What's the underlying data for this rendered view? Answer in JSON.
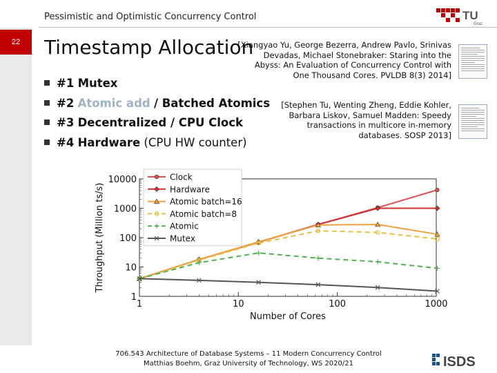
{
  "header": {
    "course_title": "Pessimistic and Optimistic Concurrency Control",
    "page_number": "22"
  },
  "logo": {
    "text": "TU",
    "subtext": "Graz",
    "color": "#c00000"
  },
  "slide": {
    "title": "Timestamp Allocation",
    "bullets": [
      {
        "number": "#1",
        "bold": "Mutex",
        "rest": ""
      },
      {
        "number": "#2",
        "highlight": "Atomic add",
        "bold": "/ Batched Atomics",
        "rest": ""
      },
      {
        "number": "#3",
        "bold": "Decentralized / CPU Clock",
        "rest": ""
      },
      {
        "number": "#4",
        "bold": "Hardware",
        "rest": "(CPU HW counter)"
      }
    ],
    "references": [
      "[Xiangyao Yu, George Bezerra, Andrew Pavlo, Srinivas Devadas, Michael Stonebraker: Staring into the Abyss: An Evaluation of Concurrency Control with One Thousand Cores. PVLDB 8(3) 2014]",
      "[Stephen Tu, Wenting Zheng, Eddie Kohler, Barbara Liskov, Samuel Madden: Speedy transactions in multicore in-memory databases. SOSP 2013]"
    ]
  },
  "chart_data": {
    "type": "line",
    "xlabel": "Number of Cores",
    "ylabel": "Throughput (Million ts/s)",
    "xscale": "log",
    "yscale": "log",
    "xlim": [
      1,
      1000
    ],
    "ylim": [
      1,
      10000
    ],
    "xticks": [
      "1",
      "10",
      "100",
      "1000"
    ],
    "yticks": [
      "1",
      "10",
      "100",
      "1000",
      "10000"
    ],
    "legend_position": "top-left",
    "series": [
      {
        "name": "Clock",
        "color": "#e05050",
        "marker": "circle",
        "dash": "solid",
        "x": [
          1,
          4,
          16,
          64,
          256,
          1024
        ],
        "y": [
          4,
          18,
          70,
          280,
          1050,
          4200
        ]
      },
      {
        "name": "Hardware",
        "color": "#d03030",
        "marker": "diamond",
        "dash": "solid",
        "x": [
          1,
          4,
          16,
          64,
          256,
          1024
        ],
        "y": [
          4,
          18,
          70,
          280,
          1000,
          1000
        ]
      },
      {
        "name": "Atomic batch=16",
        "color": "#f0a040",
        "marker": "triangle",
        "dash": "solid",
        "x": [
          1,
          4,
          16,
          64,
          256,
          1024
        ],
        "y": [
          4,
          18,
          72,
          270,
          280,
          130
        ]
      },
      {
        "name": "Atomic batch=8",
        "color": "#e8c040",
        "marker": "circle-open",
        "dash": "dashed",
        "x": [
          1,
          4,
          16,
          64,
          256,
          1024
        ],
        "y": [
          4,
          17,
          65,
          170,
          150,
          90
        ]
      },
      {
        "name": "Atomic",
        "color": "#50b050",
        "marker": "plus",
        "dash": "dashed",
        "x": [
          1,
          4,
          16,
          64,
          256,
          1024
        ],
        "y": [
          4,
          14,
          30,
          20,
          15,
          9
        ]
      },
      {
        "name": "Mutex",
        "color": "#555555",
        "marker": "x",
        "dash": "solid",
        "x": [
          1,
          4,
          16,
          64,
          256,
          1024
        ],
        "y": [
          4,
          3.5,
          3,
          2.5,
          2,
          1.5
        ]
      }
    ]
  },
  "footer": {
    "line1": "706.543 Architecture of Database Systems – 11 Modern Concurrency Control",
    "line2": "Matthias Boehm, Graz University of Technology, WS 2020/21"
  },
  "isds_logo": {
    "text": "ISDS"
  }
}
